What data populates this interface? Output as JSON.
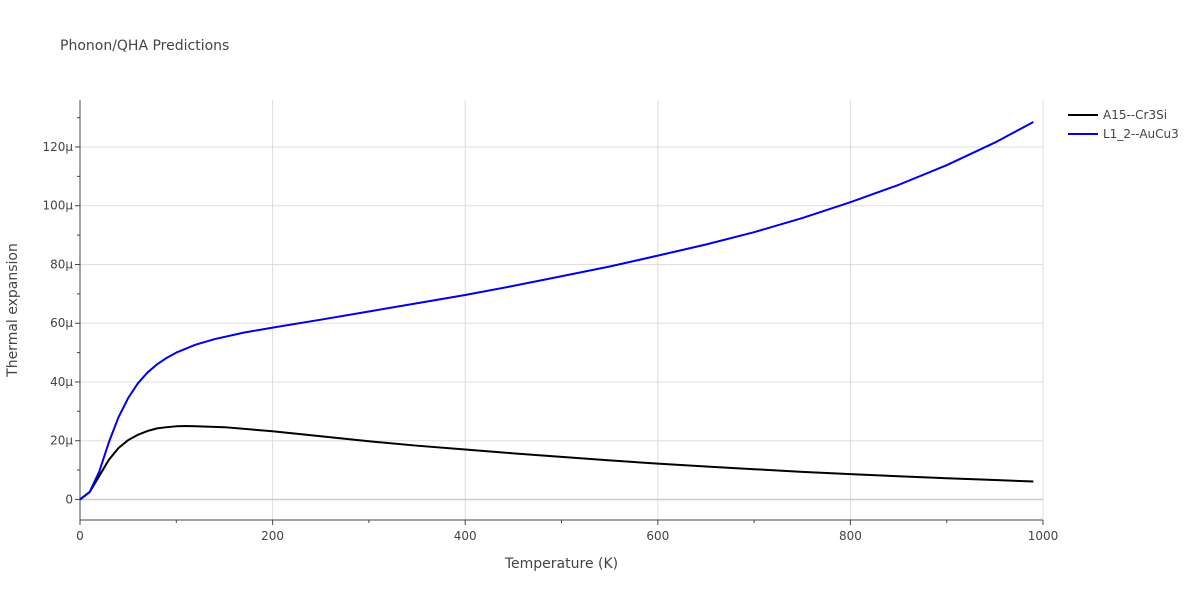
{
  "chart_data": {
    "type": "line",
    "title": "Phonon/QHA Predictions",
    "xlabel": "Temperature (K)",
    "ylabel": "Thermal expansion",
    "xlim": [
      0,
      1000
    ],
    "ylim": [
      -7e-06,
      0.000136
    ],
    "x_ticks": [
      0,
      200,
      400,
      600,
      800,
      1000
    ],
    "x_tick_labels": [
      "0",
      "200",
      "400",
      "600",
      "800",
      "1000"
    ],
    "y_ticks": [
      0,
      2e-05,
      4e-05,
      6e-05,
      8e-05,
      0.0001,
      0.00012
    ],
    "y_tick_labels": [
      "0",
      "20μ",
      "40μ",
      "60μ",
      "80μ",
      "100μ",
      "120μ"
    ],
    "grid": true,
    "legend_position": "top-right",
    "series": [
      {
        "name": "A15--Cr3Si",
        "color": "#000000",
        "x": [
          0,
          10,
          20,
          30,
          40,
          50,
          60,
          70,
          80,
          90,
          100,
          110,
          120,
          150,
          200,
          250,
          300,
          350,
          400,
          450,
          500,
          550,
          600,
          650,
          700,
          750,
          800,
          850,
          900,
          950,
          990
        ],
        "y": [
          0,
          2.5e-06,
          8e-06,
          1.35e-05,
          1.75e-05,
          2.02e-05,
          2.2e-05,
          2.33e-05,
          2.42e-05,
          2.46e-05,
          2.49e-05,
          2.5e-05,
          2.49e-05,
          2.46e-05,
          2.32e-05,
          2.15e-05,
          1.98e-05,
          1.83e-05,
          1.7e-05,
          1.57e-05,
          1.45e-05,
          1.33e-05,
          1.22e-05,
          1.12e-05,
          1.03e-05,
          9.4e-06,
          8.6e-06,
          7.9e-06,
          7.2e-06,
          6.6e-06,
          6.1e-06
        ]
      },
      {
        "name": "L1_2--AuCu3",
        "color": "#0000ee",
        "x": [
          0,
          10,
          20,
          30,
          40,
          50,
          60,
          70,
          80,
          90,
          100,
          120,
          140,
          170,
          200,
          250,
          300,
          350,
          400,
          450,
          500,
          550,
          600,
          650,
          700,
          750,
          800,
          850,
          900,
          950,
          990
        ],
        "y": [
          0,
          2.5e-06,
          9.5e-06,
          1.95e-05,
          2.8e-05,
          3.45e-05,
          3.95e-05,
          4.32e-05,
          4.6e-05,
          4.82e-05,
          5e-05,
          5.27e-05,
          5.46e-05,
          5.68e-05,
          5.85e-05,
          6.12e-05,
          6.4e-05,
          6.68e-05,
          6.96e-05,
          7.27e-05,
          7.6e-05,
          7.93e-05,
          8.3e-05,
          8.68e-05,
          9.1e-05,
          9.58e-05,
          0.0001012,
          0.0001071,
          0.0001138,
          0.0001215,
          0.0001285
        ]
      }
    ]
  }
}
